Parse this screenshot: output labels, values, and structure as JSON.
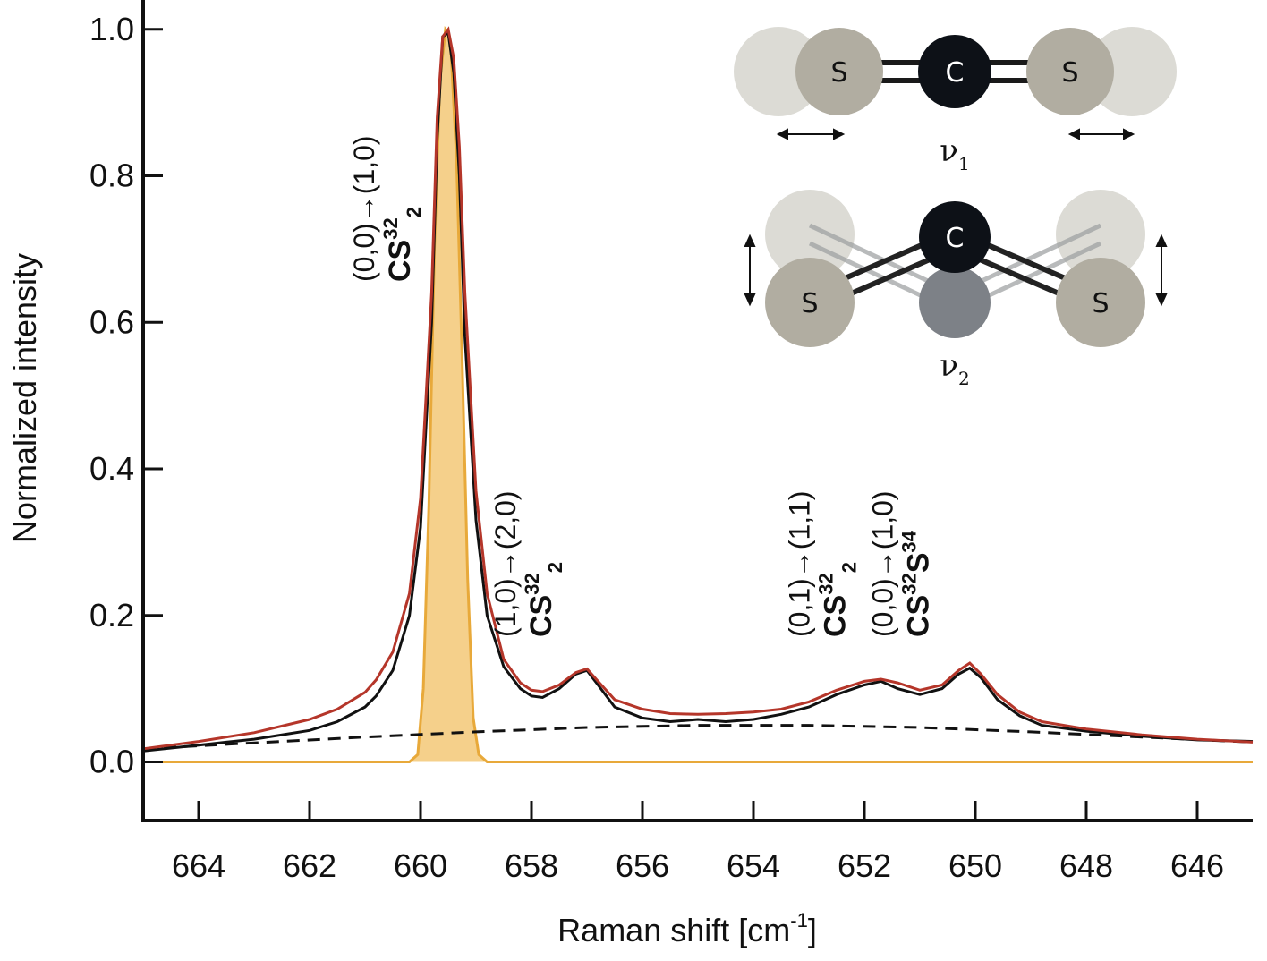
{
  "chart_data": {
    "type": "line",
    "xlabel": "Raman shift [cm",
    "xlabel_sup": "-1",
    "xlabel_end": "]",
    "ylabel": "Normalized intensity",
    "xlim": [
      665,
      645
    ],
    "ylim": [
      -0.08,
      1.04
    ],
    "x_reversed": true,
    "x_ticks": [
      664,
      662,
      660,
      658,
      656,
      654,
      652,
      650,
      648,
      646
    ],
    "x_tick_labels": [
      "664",
      "662",
      "660",
      "658",
      "656",
      "654",
      "652",
      "650",
      "648",
      "646"
    ],
    "y_ticks": [
      0.0,
      0.2,
      0.4,
      0.6,
      0.8,
      1.0
    ],
    "y_tick_labels": [
      "0.0",
      "0.2",
      "0.4",
      "0.6",
      "0.8",
      "1.0"
    ],
    "grid": false,
    "series": [
      {
        "style": "black-solid",
        "color": "#111111",
        "x": [
          665,
          664,
          663,
          662,
          661.5,
          661,
          660.8,
          660.5,
          660.2,
          660.0,
          659.8,
          659.7,
          659.6,
          659.5,
          659.4,
          659.3,
          659.2,
          659.0,
          658.8,
          658.5,
          658.2,
          658.0,
          657.8,
          657.5,
          657.2,
          657.0,
          656.8,
          656.5,
          656.0,
          655.5,
          655.0,
          654.5,
          654.0,
          653.5,
          653.0,
          652.5,
          652.0,
          651.7,
          651.4,
          651.0,
          650.6,
          650.3,
          650.1,
          649.9,
          649.6,
          649.2,
          648.8,
          648.0,
          647.0,
          646.0,
          645.0
        ],
        "y": [
          0.015,
          0.023,
          0.031,
          0.043,
          0.055,
          0.075,
          0.09,
          0.125,
          0.2,
          0.32,
          0.6,
          0.85,
          0.99,
          0.995,
          0.94,
          0.8,
          0.58,
          0.33,
          0.2,
          0.13,
          0.1,
          0.09,
          0.088,
          0.1,
          0.12,
          0.125,
          0.105,
          0.075,
          0.06,
          0.055,
          0.058,
          0.055,
          0.058,
          0.065,
          0.075,
          0.092,
          0.105,
          0.11,
          0.1,
          0.092,
          0.1,
          0.12,
          0.128,
          0.115,
          0.085,
          0.063,
          0.05,
          0.042,
          0.035,
          0.03,
          0.028
        ]
      },
      {
        "style": "red-solid",
        "color": "#b5362a",
        "x": [
          665,
          664,
          663,
          662,
          661.5,
          661,
          660.8,
          660.5,
          660.2,
          660.0,
          659.8,
          659.7,
          659.6,
          659.5,
          659.4,
          659.3,
          659.2,
          659.0,
          658.8,
          658.5,
          658.2,
          658.0,
          657.8,
          657.5,
          657.2,
          657.0,
          656.8,
          656.5,
          656.0,
          655.5,
          655.0,
          654.5,
          654.0,
          653.5,
          653.0,
          652.5,
          652.0,
          651.7,
          651.4,
          651.0,
          650.6,
          650.3,
          650.1,
          649.9,
          649.6,
          649.2,
          648.8,
          648.0,
          647.0,
          646.0,
          645.0
        ],
        "y": [
          0.018,
          0.028,
          0.04,
          0.058,
          0.072,
          0.095,
          0.112,
          0.15,
          0.23,
          0.36,
          0.64,
          0.88,
          0.99,
          1.0,
          0.96,
          0.84,
          0.64,
          0.37,
          0.23,
          0.14,
          0.108,
          0.098,
          0.096,
          0.105,
          0.122,
          0.127,
          0.11,
          0.085,
          0.072,
          0.066,
          0.065,
          0.066,
          0.068,
          0.072,
          0.082,
          0.098,
          0.11,
          0.113,
          0.108,
          0.098,
          0.105,
          0.125,
          0.135,
          0.12,
          0.092,
          0.068,
          0.055,
          0.045,
          0.037,
          0.031,
          0.027
        ]
      },
      {
        "style": "black-dashed",
        "color": "#111111",
        "x": [
          665,
          663,
          661,
          659,
          657,
          655,
          653,
          651,
          649,
          647,
          645
        ],
        "y": [
          0.018,
          0.026,
          0.034,
          0.041,
          0.047,
          0.05,
          0.05,
          0.047,
          0.041,
          0.034,
          0.027
        ]
      },
      {
        "style": "orange-filled",
        "color": "#e8a93a",
        "fill": "#f5d08b",
        "x": [
          665,
          660.2,
          660.05,
          659.95,
          659.85,
          659.75,
          659.65,
          659.55,
          659.5,
          659.45,
          659.35,
          659.25,
          659.15,
          659.05,
          658.95,
          658.8,
          645
        ],
        "y": [
          0.0,
          0.0,
          0.01,
          0.1,
          0.35,
          0.7,
          0.93,
          1.0,
          0.995,
          0.97,
          0.82,
          0.55,
          0.25,
          0.06,
          0.01,
          0.0,
          0.0
        ]
      }
    ],
    "annotations": [
      {
        "transition": "(0,0)→(1,0)",
        "molecule": "CS",
        "sup1": "32",
        "sub1": "2",
        "sup2": "",
        "tail": "",
        "x": 659.55
      },
      {
        "transition": "(1,0)→(2,0)",
        "molecule": "CS",
        "sup1": "32",
        "sub1": "2",
        "sup2": "",
        "tail": "",
        "x": 657.0
      },
      {
        "transition": "(0,1)→(1,1)",
        "molecule": "CS",
        "sup1": "32",
        "sub1": "2",
        "sup2": "",
        "tail": "",
        "x": 651.7
      },
      {
        "transition": "(0,0)→(1,0)",
        "molecule": "CS",
        "sup1": "32",
        "sub1": "",
        "sup2": "34",
        "tail": "S",
        "x": 650.2
      }
    ],
    "inset": {
      "atoms": {
        "carbon": "C",
        "sulfur": "S"
      },
      "modes": [
        {
          "symbol": "ν",
          "sub": "1"
        },
        {
          "symbol": "ν",
          "sub": "2"
        }
      ],
      "colors": {
        "carbon": "#0d1117",
        "sulfur": "#b1ada1",
        "ghost": "#dcdbd5",
        "ghost_carbon": "#7d8187"
      }
    }
  }
}
